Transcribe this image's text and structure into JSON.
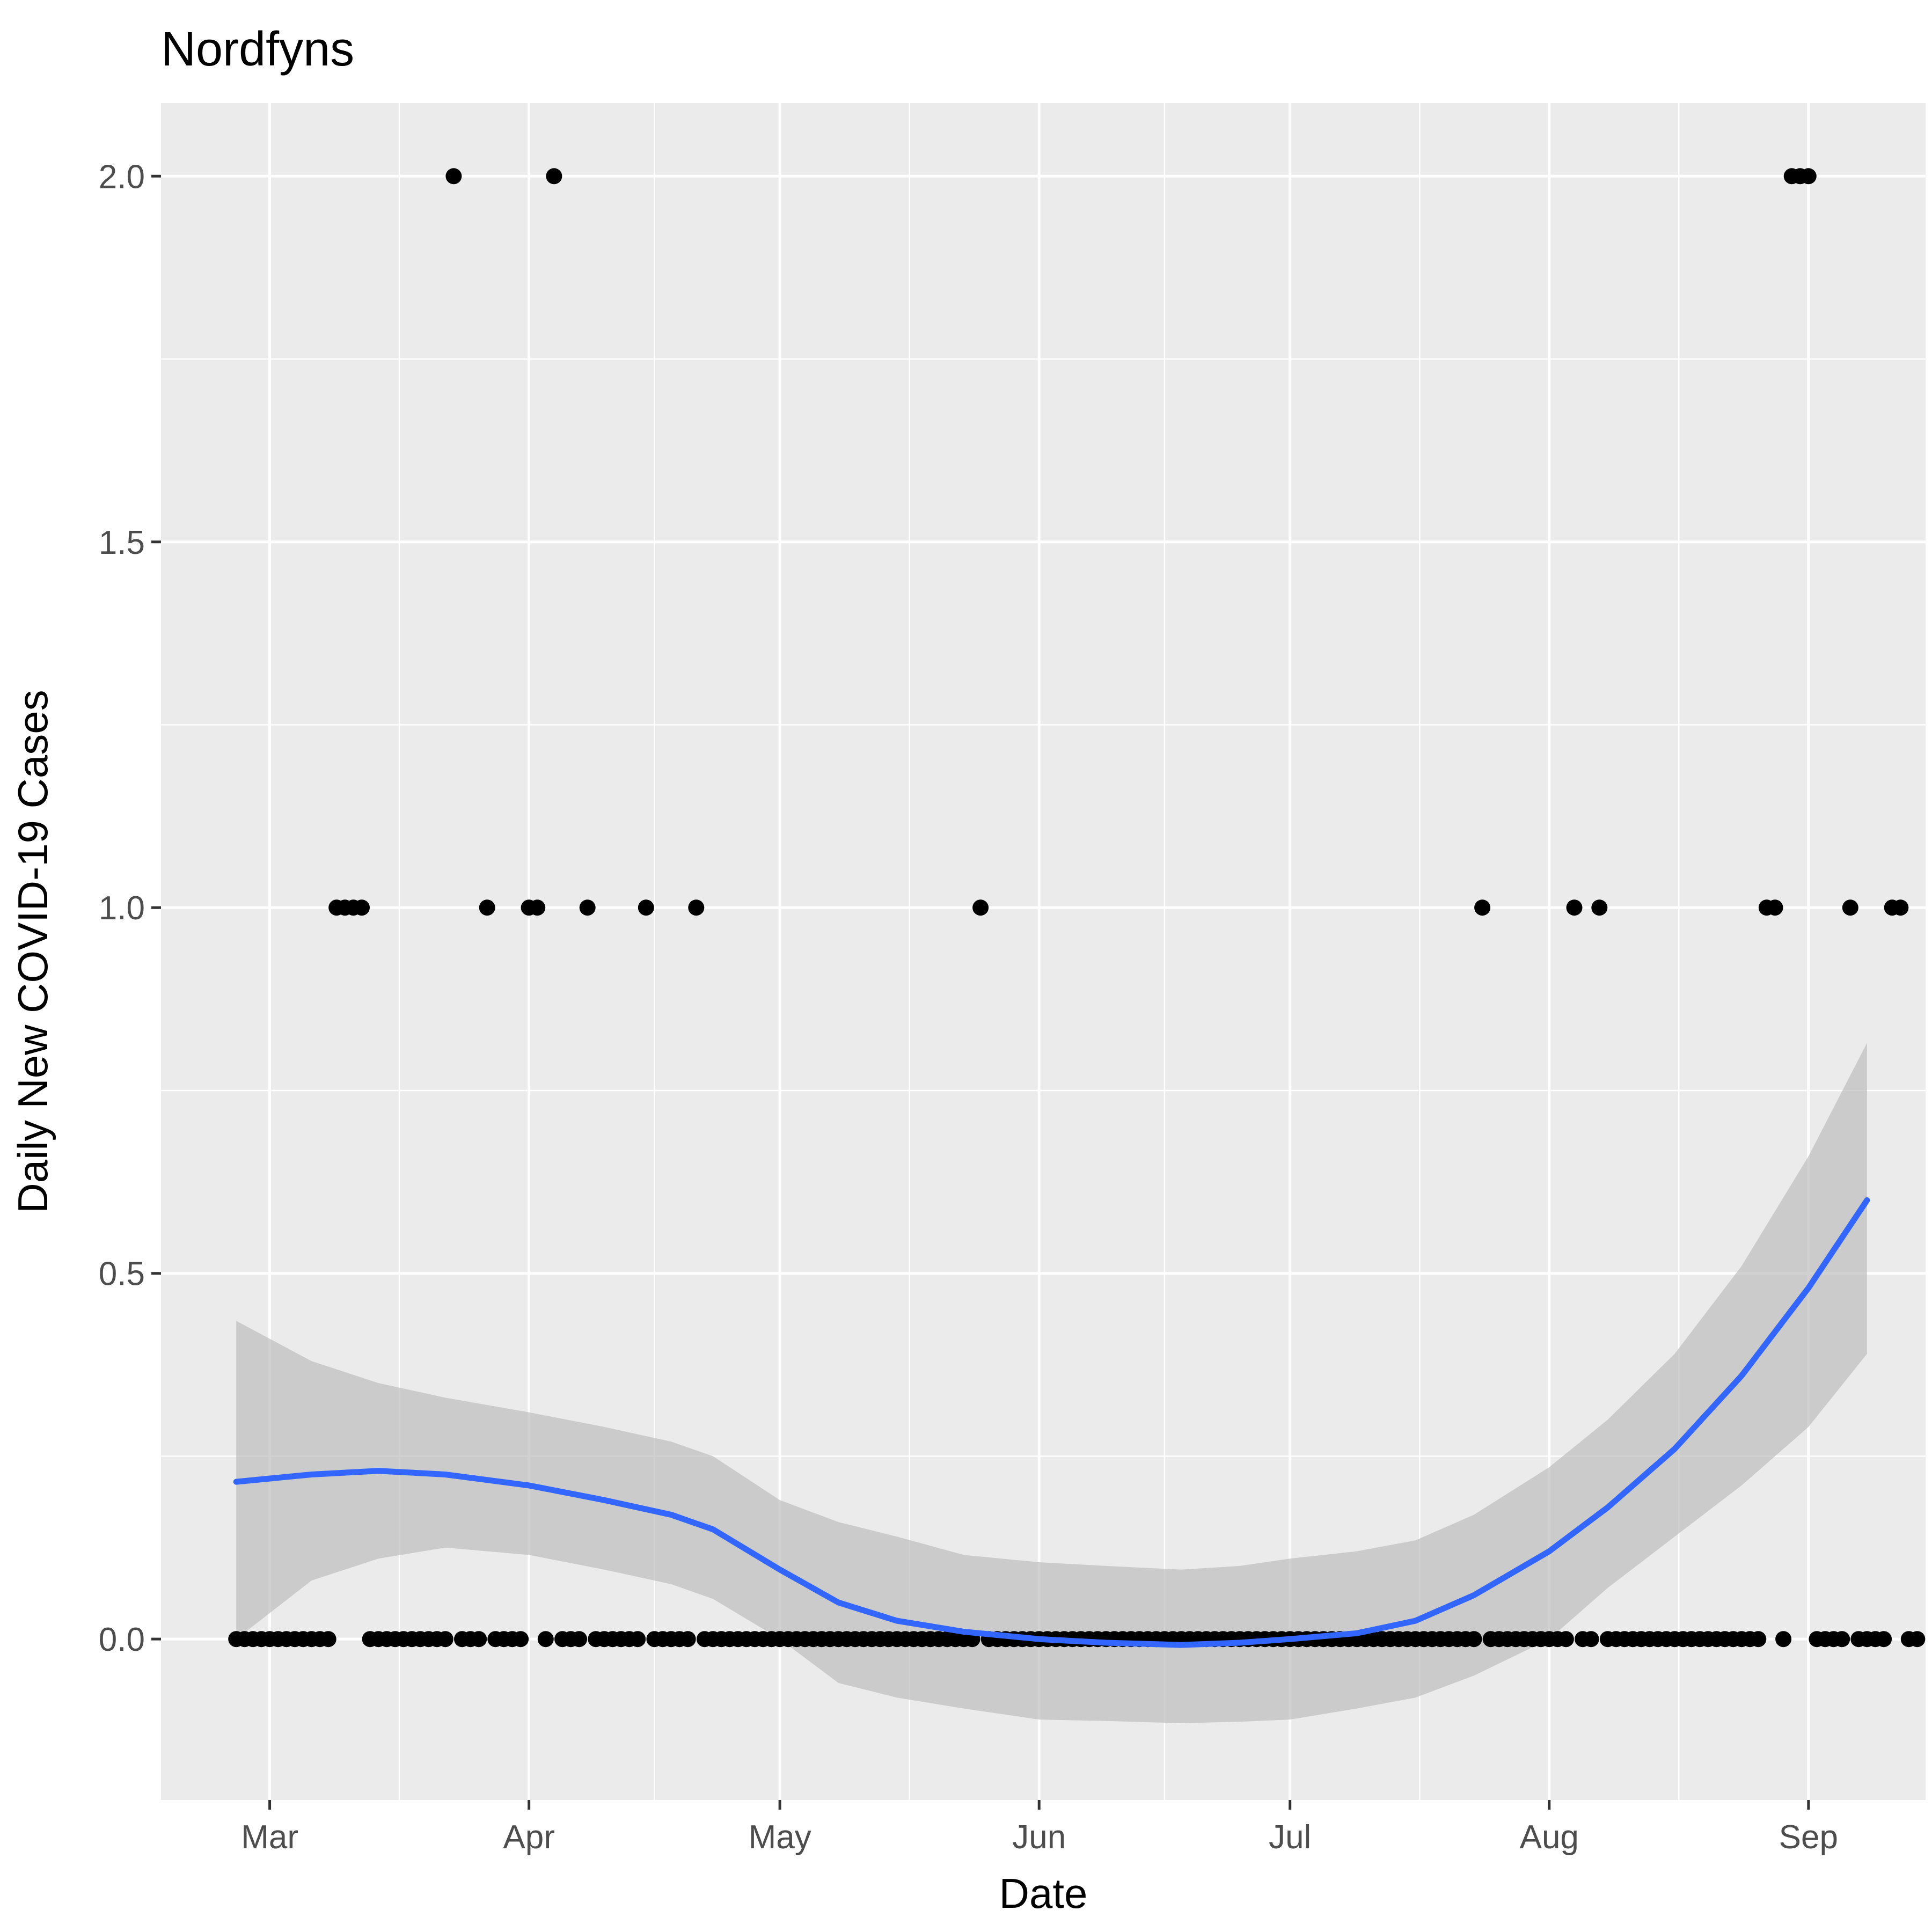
{
  "chart_data": {
    "type": "scatter",
    "title": "Nordfyns",
    "xlabel": "Date",
    "ylabel": "Daily New COVID-19 Cases",
    "xlim": [
      "2020-02-17",
      "2020-09-15"
    ],
    "ylim": [
      -0.22,
      2.1
    ],
    "x_ticks": [
      {
        "date": "2020-03-01",
        "label": "Mar"
      },
      {
        "date": "2020-04-01",
        "label": "Apr"
      },
      {
        "date": "2020-05-01",
        "label": "May"
      },
      {
        "date": "2020-06-01",
        "label": "Jun"
      },
      {
        "date": "2020-07-01",
        "label": "Jul"
      },
      {
        "date": "2020-08-01",
        "label": "Aug"
      },
      {
        "date": "2020-09-01",
        "label": "Sep"
      }
    ],
    "y_ticks": [
      {
        "value": 0,
        "label": "0.0"
      },
      {
        "value": 0.5,
        "label": "0.5"
      },
      {
        "value": 1,
        "label": "1.0"
      },
      {
        "value": 1.5,
        "label": "1.5"
      },
      {
        "value": 2,
        "label": "2.0"
      }
    ],
    "y_minor_ticks": [
      0.25,
      0.75,
      1.25,
      1.75
    ],
    "grid": true,
    "background": "#ebebeb",
    "point_color": "#000000",
    "smooth_color": "#3366ff",
    "ribbon_color": "#bebebe",
    "points": {
      "start_date": "2020-02-26",
      "values": [
        0,
        0,
        0,
        0,
        0,
        0,
        0,
        0,
        0,
        0,
        0,
        0,
        1,
        1,
        1,
        1,
        0,
        0,
        0,
        0,
        0,
        0,
        0,
        0,
        0,
        0,
        2,
        0,
        0,
        0,
        1,
        0,
        0,
        0,
        0,
        1,
        1,
        0,
        2,
        0,
        0,
        0,
        1,
        0,
        0,
        0,
        0,
        0,
        0,
        1,
        0,
        0,
        0,
        0,
        0,
        1,
        0,
        0,
        0,
        0,
        0,
        0,
        0,
        0,
        0,
        0,
        0,
        0,
        0,
        0,
        0,
        0,
        0,
        0,
        0,
        0,
        0,
        0,
        0,
        0,
        0,
        0,
        0,
        0,
        0,
        0,
        0,
        0,
        0,
        1,
        0,
        0,
        0,
        0,
        0,
        0,
        0,
        0,
        0,
        0,
        0,
        0,
        0,
        0,
        0,
        0,
        0,
        0,
        0,
        0,
        0,
        0,
        0,
        0,
        0,
        0,
        0,
        0,
        0,
        0,
        0,
        0,
        0,
        0,
        0,
        0,
        0,
        0,
        0,
        0,
        0,
        0,
        0,
        0,
        0,
        0,
        0,
        0,
        0,
        0,
        0,
        0,
        0,
        0,
        0,
        0,
        0,
        0,
        0,
        1,
        0,
        0,
        0,
        0,
        0,
        0,
        0,
        0,
        0,
        0,
        1,
        0,
        0,
        1,
        0,
        0,
        0,
        0,
        0,
        0,
        0,
        0,
        0,
        0,
        0,
        0,
        0,
        0,
        0,
        0,
        0,
        0,
        0,
        1,
        1,
        0,
        2,
        2,
        2,
        0,
        0,
        0,
        0,
        1,
        0,
        0,
        0,
        0,
        1,
        1,
        0,
        0
      ]
    },
    "smooth": {
      "x": [
        "2020-02-26",
        "2020-03-06",
        "2020-03-14",
        "2020-03-22",
        "2020-04-01",
        "2020-04-10",
        "2020-04-18",
        "2020-04-23",
        "2020-05-01",
        "2020-05-08",
        "2020-05-15",
        "2020-05-23",
        "2020-06-01",
        "2020-06-09",
        "2020-06-18",
        "2020-06-25",
        "2020-07-01",
        "2020-07-09",
        "2020-07-16",
        "2020-07-23",
        "2020-08-01",
        "2020-08-08",
        "2020-08-16",
        "2020-08-24",
        "2020-09-01",
        "2020-09-08"
      ],
      "y": [
        0.215,
        0.225,
        0.23,
        0.225,
        0.21,
        0.19,
        0.17,
        0.15,
        0.095,
        0.05,
        0.025,
        0.01,
        0.0,
        -0.005,
        -0.008,
        -0.005,
        0.0,
        0.008,
        0.025,
        0.06,
        0.12,
        0.18,
        0.26,
        0.36,
        0.48,
        0.6
      ],
      "lower": [
        0.0,
        0.08,
        0.11,
        0.125,
        0.115,
        0.095,
        0.075,
        0.055,
        0.0,
        -0.06,
        -0.08,
        -0.095,
        -0.11,
        -0.112,
        -0.115,
        -0.113,
        -0.11,
        -0.095,
        -0.08,
        -0.05,
        0.0,
        0.07,
        0.14,
        0.21,
        0.29,
        0.39
      ],
      "upper": [
        0.435,
        0.38,
        0.35,
        0.33,
        0.31,
        0.29,
        0.27,
        0.25,
        0.19,
        0.16,
        0.14,
        0.115,
        0.105,
        0.1,
        0.095,
        0.1,
        0.11,
        0.12,
        0.135,
        0.17,
        0.235,
        0.3,
        0.39,
        0.51,
        0.66,
        0.815
      ]
    }
  }
}
